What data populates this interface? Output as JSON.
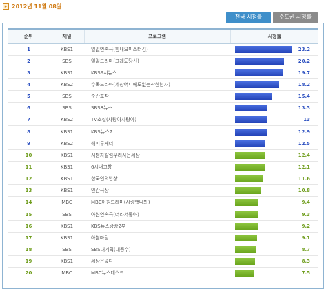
{
  "header": {
    "date": "2012년 11월 08일",
    "arrow_icon": "play-arrow-icon"
  },
  "tabs": [
    {
      "label": "전국 시청률",
      "active": true
    },
    {
      "label": "수도권 시청률",
      "active": false
    }
  ],
  "table": {
    "columns": [
      "순위",
      "채널",
      "프로그램",
      "시청률"
    ],
    "max_rating": 23.2,
    "colors": {
      "top": "#2b4fc0",
      "rest": "#6f9d1c"
    },
    "rows": [
      {
        "rank": "1",
        "channel": "KBS1",
        "program": "일일연속극(힘내요미스터김)",
        "rating": "23.2"
      },
      {
        "rank": "2",
        "channel": "SBS",
        "program": "일일드라마(그래도당신)",
        "rating": "20.2"
      },
      {
        "rank": "3",
        "channel": "KBS1",
        "program": "KBS9시뉴스",
        "rating": "19.7"
      },
      {
        "rank": "4",
        "channel": "KBS2",
        "program": "수목드라마(세상어디에도없는착한남자)",
        "rating": "18.2"
      },
      {
        "rank": "5",
        "channel": "SBS",
        "program": "순간포착",
        "rating": "15.4"
      },
      {
        "rank": "6",
        "channel": "SBS",
        "program": "SBS8뉴스",
        "rating": "13.3"
      },
      {
        "rank": "7",
        "channel": "KBS2",
        "program": "TV소설(사랑아사랑아)",
        "rating": "13"
      },
      {
        "rank": "8",
        "channel": "KBS1",
        "program": "KBS뉴스7",
        "rating": "12.9"
      },
      {
        "rank": "9",
        "channel": "KBS2",
        "program": "해피투게더",
        "rating": "12.5"
      },
      {
        "rank": "10",
        "channel": "KBS1",
        "program": "시청자칼럼우리사는세상",
        "rating": "12.4"
      },
      {
        "rank": "11",
        "channel": "KBS1",
        "program": "6시내고향",
        "rating": "12.1"
      },
      {
        "rank": "12",
        "channel": "KBS1",
        "program": "한국인의밥상",
        "rating": "11.6"
      },
      {
        "rank": "13",
        "channel": "KBS1",
        "program": "인간극장",
        "rating": "10.8"
      },
      {
        "rank": "14",
        "channel": "MBC",
        "program": "MBC아침드라마(사랑했나봐)",
        "rating": "9.4"
      },
      {
        "rank": "15",
        "channel": "SBS",
        "program": "아침연속극(너라서좋아)",
        "rating": "9.3"
      },
      {
        "rank": "16",
        "channel": "KBS1",
        "program": "KBS뉴스광장2부",
        "rating": "9.2"
      },
      {
        "rank": "17",
        "channel": "KBS1",
        "program": "아침마당",
        "rating": "9.1"
      },
      {
        "rank": "18",
        "channel": "SBS",
        "program": "SBS대기획(대풍수)",
        "rating": "8.7"
      },
      {
        "rank": "19",
        "channel": "KBS1",
        "program": "세상은넓다",
        "rating": "8.3"
      },
      {
        "rank": "20",
        "channel": "MBC",
        "program": "MBC뉴스데스크",
        "rating": "7.5"
      }
    ]
  }
}
